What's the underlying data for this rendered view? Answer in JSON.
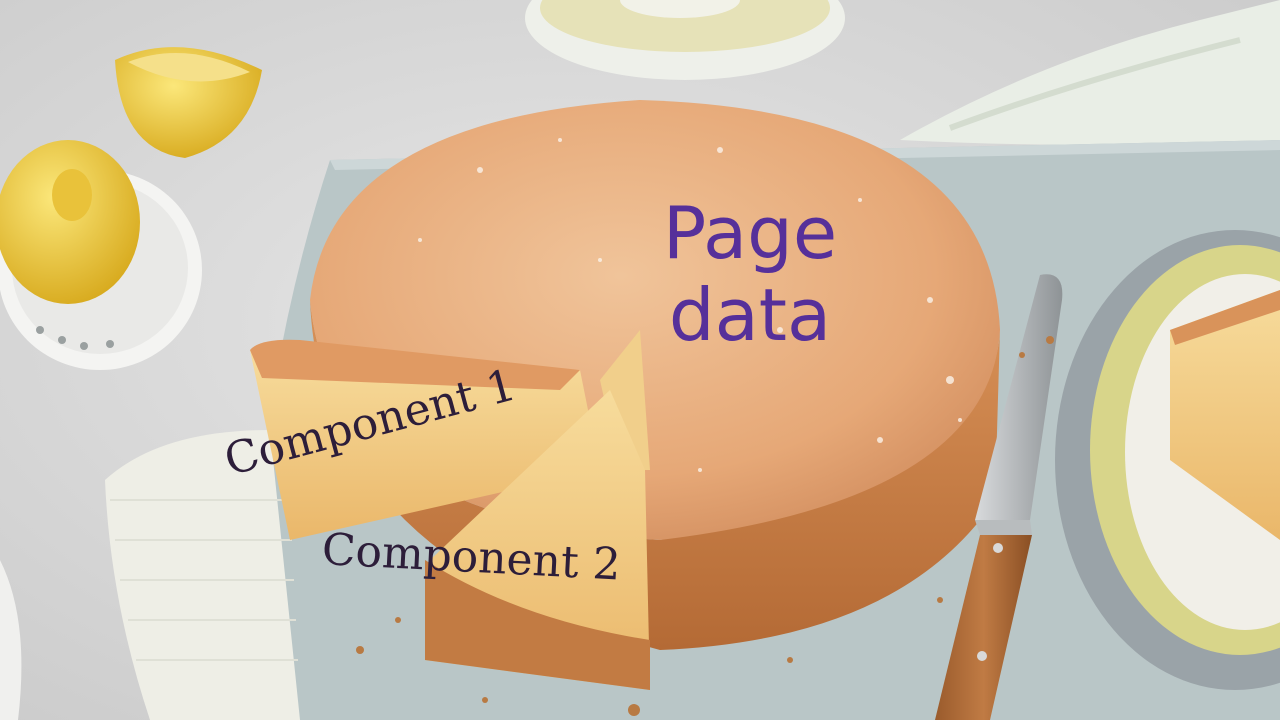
{
  "overlay_labels": {
    "page_data": "Page\ndata",
    "component_1": "Component 1",
    "component_2": "Component 2"
  },
  "colors": {
    "page_data_text": "#56309a",
    "component_text": "#2d1e3a",
    "background": "#dcdcdc",
    "board": "#b8c5c6",
    "cake_crust": "#e4a778",
    "cake_crumb": "#f3d08a",
    "lemon": "#f2cd3e"
  },
  "scene": {
    "description_icons": [
      "cake-icon",
      "lemon-icon",
      "knife-icon",
      "plate-icon"
    ]
  }
}
